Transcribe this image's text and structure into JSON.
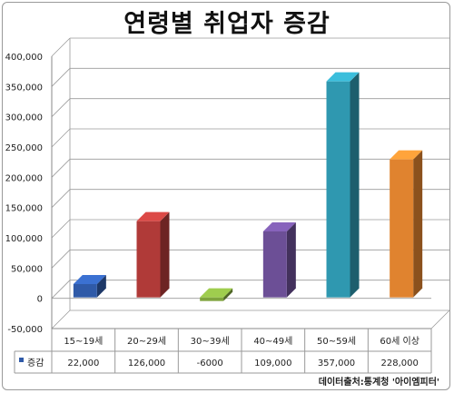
{
  "chart_data": {
    "type": "bar",
    "title": "연령별 취업자 증감",
    "categories": [
      "15~19세",
      "20~29세",
      "30~39세",
      "40~49세",
      "50~59세",
      "60세 이상"
    ],
    "series": [
      {
        "name": "증감",
        "values": [
          22000,
          126000,
          -6000,
          109000,
          357000,
          228000
        ],
        "value_labels": [
          "22,000",
          "126,000",
          "-6000",
          "109,000",
          "357,000",
          "228,000"
        ]
      }
    ],
    "bar_colors": [
      "#2f5aa8",
      "#b03a38",
      "#7fa43e",
      "#6c4f96",
      "#2f98b0",
      "#e0832f"
    ],
    "legend_color": "#2f5aa8",
    "ylim": [
      -50000,
      400000
    ],
    "yticks": [
      -50000,
      0,
      50000,
      100000,
      150000,
      200000,
      250000,
      300000,
      350000,
      400000
    ],
    "ytick_labels": [
      "-50,000",
      "0",
      "50,000",
      "100,000",
      "150,000",
      "200,000",
      "250,000",
      "300,000",
      "350,000",
      "400,000"
    ],
    "grid": true,
    "legend": "data-table"
  },
  "source": "데이터출처:통계청 '아이엠피터'"
}
